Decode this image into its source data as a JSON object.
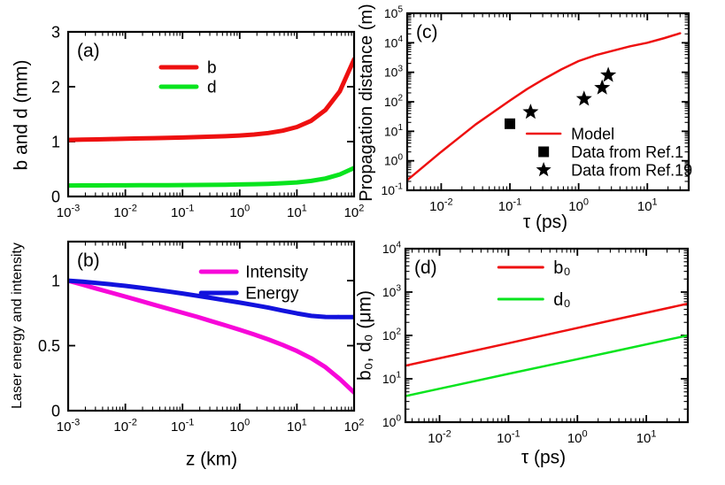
{
  "figure": {
    "background": "#ffffff"
  },
  "chart_data": [
    {
      "id": "a",
      "panel_label": "(a)",
      "type": "line",
      "xscale": "log",
      "yscale": "linear",
      "xlim": [
        0.001,
        100
      ],
      "ylim": [
        0,
        3
      ],
      "xticks": {
        "style": "log",
        "values": [
          0.001,
          0.01,
          0.1,
          1,
          10,
          100
        ]
      },
      "yticks": {
        "style": "plain",
        "values": [
          0,
          1,
          2,
          3
        ],
        "labels": [
          "0",
          "1",
          "2",
          "3"
        ]
      },
      "xlabel": "",
      "ylabel": "b and d (mm)",
      "grid": false,
      "series": [
        {
          "name": "b",
          "color": "#ee1010",
          "width": 5,
          "x": [
            0.001,
            0.00178,
            0.00316,
            0.00562,
            0.01,
            0.0178,
            0.0316,
            0.0562,
            0.1,
            0.178,
            0.316,
            0.562,
            1,
            1.78,
            3.16,
            5.62,
            10,
            17.8,
            31.6,
            56.2,
            100
          ],
          "y": [
            1.03,
            1.036,
            1.041,
            1.047,
            1.052,
            1.058,
            1.063,
            1.069,
            1.074,
            1.082,
            1.09,
            1.099,
            1.112,
            1.129,
            1.156,
            1.198,
            1.266,
            1.381,
            1.577,
            1.914,
            2.5
          ]
        },
        {
          "name": "d",
          "color": "#09e41e",
          "width": 5,
          "x": [
            0.001,
            0.00178,
            0.00316,
            0.00562,
            0.01,
            0.0178,
            0.0316,
            0.0562,
            0.1,
            0.178,
            0.316,
            0.562,
            1,
            1.78,
            3.16,
            5.62,
            10,
            17.8,
            31.6,
            56.2,
            100
          ],
          "y": [
            0.2,
            0.201,
            0.202,
            0.203,
            0.204,
            0.205,
            0.206,
            0.207,
            0.208,
            0.21,
            0.212,
            0.215,
            0.219,
            0.224,
            0.231,
            0.242,
            0.257,
            0.284,
            0.328,
            0.401,
            0.52
          ]
        }
      ],
      "legend": {
        "position": "top-center",
        "fx": 0.325,
        "fy": 0.215,
        "gap": 22,
        "sw": 40,
        "dx": 12,
        "font": 19,
        "entries": [
          {
            "swatch": "line",
            "color": "#ee1010",
            "lw": 5,
            "label": "b"
          },
          {
            "swatch": "line",
            "color": "#09e41e",
            "lw": 5,
            "label": "d"
          }
        ]
      }
    },
    {
      "id": "b",
      "panel_label": "(b)",
      "type": "line",
      "xscale": "log",
      "yscale": "linear",
      "xlim": [
        0.001,
        100
      ],
      "ylim": [
        0,
        1.3
      ],
      "xticks": {
        "style": "log",
        "values": [
          0.001,
          0.01,
          0.1,
          1,
          10,
          100
        ]
      },
      "yticks": {
        "style": "plain",
        "values": [
          0,
          0.5,
          1
        ],
        "labels": [
          "0",
          "0.5",
          "1"
        ]
      },
      "xlabel": "z (km)",
      "ylabel": "Laser energy and intensity",
      "grid": false,
      "series": [
        {
          "name": "Intensity",
          "color": "#f707d9",
          "width": 5,
          "x": [
            0.001,
            0.00178,
            0.00316,
            0.00562,
            0.01,
            0.0178,
            0.0316,
            0.0562,
            0.1,
            0.178,
            0.316,
            0.562,
            1,
            1.78,
            3.16,
            5.62,
            10,
            17.8,
            31.6,
            56.2,
            100
          ],
          "y": [
            1.0,
            0.969,
            0.938,
            0.908,
            0.877,
            0.846,
            0.815,
            0.784,
            0.753,
            0.722,
            0.689,
            0.656,
            0.622,
            0.586,
            0.548,
            0.506,
            0.459,
            0.403,
            0.334,
            0.244,
            0.14
          ]
        },
        {
          "name": "Energy",
          "color": "#1212dd",
          "width": 5,
          "x": [
            0.001,
            0.00178,
            0.00316,
            0.00562,
            0.01,
            0.0178,
            0.0316,
            0.0562,
            0.1,
            0.178,
            0.316,
            0.562,
            1,
            1.78,
            3.16,
            5.62,
            10,
            17.8,
            31.6,
            56.2,
            100
          ],
          "y": [
            1.0,
            0.992,
            0.982,
            0.971,
            0.96,
            0.946,
            0.932,
            0.917,
            0.901,
            0.884,
            0.867,
            0.849,
            0.831,
            0.812,
            0.792,
            0.77,
            0.748,
            0.729,
            0.721,
            0.72,
            0.72
          ]
        }
      ],
      "legend": {
        "position": "top-right",
        "fx": 0.465,
        "fy": 0.178,
        "gap": 24,
        "sw": 40,
        "dx": 10,
        "font": 19,
        "entries": [
          {
            "swatch": "line",
            "color": "#f707d9",
            "lw": 5,
            "label": "Intensity"
          },
          {
            "swatch": "line",
            "color": "#1212dd",
            "lw": 5,
            "label": "Energy"
          }
        ]
      }
    },
    {
      "id": "c",
      "panel_label": "(c)",
      "type": "line",
      "xscale": "log",
      "yscale": "log",
      "xlim": [
        0.0032,
        40
      ],
      "ylim": [
        0.1,
        100000
      ],
      "xticks": {
        "style": "log",
        "values": [
          0.01,
          0.1,
          1,
          10
        ]
      },
      "yticks": {
        "style": "log",
        "values": [
          0.1,
          1,
          10,
          100,
          1000,
          10000,
          100000
        ]
      },
      "xlabel": "τ (ps)",
      "ylabel": "Propagation distance (m)",
      "grid": false,
      "series": [
        {
          "name": "Model",
          "color": "#ee1010",
          "width": 2.5,
          "x": [
            0.0032,
            0.01,
            0.0316,
            0.1,
            0.178,
            0.316,
            0.562,
            1,
            1.78,
            3.16,
            5.62,
            10,
            17.8,
            30
          ],
          "y": [
            0.22,
            2,
            17,
            110,
            270,
            600,
            1250,
            2400,
            3800,
            5400,
            7600,
            10000,
            14500,
            21000
          ]
        }
      ],
      "scatter": [
        {
          "name": "Data from Ref.1",
          "marker": "square",
          "color": "#000000",
          "size": 12,
          "points": [
            [
              0.1,
              18
            ]
          ]
        },
        {
          "name": "Data from Ref.19",
          "marker": "star",
          "color": "#000000",
          "size": 9.5,
          "points": [
            [
              0.2,
              45
            ],
            [
              1.2,
              125
            ],
            [
              2.2,
              300
            ],
            [
              2.7,
              800
            ]
          ]
        }
      ],
      "legend": {
        "position": "lower-right",
        "fx": 0.425,
        "fy": 0.68,
        "gap": 20.5,
        "sw": 38,
        "dx": 12,
        "font": 18,
        "entries": [
          {
            "swatch": "line",
            "color": "#ee1010",
            "lw": 2.5,
            "label": "Model"
          },
          {
            "swatch": "square",
            "color": "#000000",
            "label": "Data from Ref.1"
          },
          {
            "swatch": "star",
            "color": "#000000",
            "label": "Data from Ref.19"
          }
        ]
      }
    },
    {
      "id": "d",
      "panel_label": "(d)",
      "type": "line",
      "xscale": "log",
      "yscale": "log",
      "xlim": [
        0.0032,
        40
      ],
      "ylim": [
        1,
        10000
      ],
      "xticks": {
        "style": "log",
        "values": [
          0.01,
          0.1,
          1,
          10
        ]
      },
      "yticks": {
        "style": "log",
        "values": [
          1,
          10,
          100,
          1000,
          10000
        ]
      },
      "xlabel": "τ (ps)",
      "ylabel": "b₀, d₀ (μm)",
      "grid": false,
      "series": [
        {
          "name": "b₀",
          "color": "#ee1010",
          "width": 2.5,
          "x": [
            0.0032,
            0.1,
            3.16,
            40
          ],
          "y": [
            20,
            66,
            223,
            540
          ]
        },
        {
          "name": "d₀",
          "color": "#09e41e",
          "width": 2.5,
          "x": [
            0.0032,
            0.1,
            3.16,
            40
          ],
          "y": [
            4,
            13,
            42,
            100
          ]
        }
      ],
      "legend": {
        "position": "top-center",
        "fx": 0.33,
        "fy": 0.107,
        "gap": 36,
        "sw": 50,
        "dx": 12,
        "font": 20,
        "entries": [
          {
            "swatch": "line",
            "color": "#ee1010",
            "lw": 3,
            "label": "b₀"
          },
          {
            "swatch": "line",
            "color": "#09e41e",
            "lw": 3,
            "label": "d₀"
          }
        ]
      }
    }
  ]
}
